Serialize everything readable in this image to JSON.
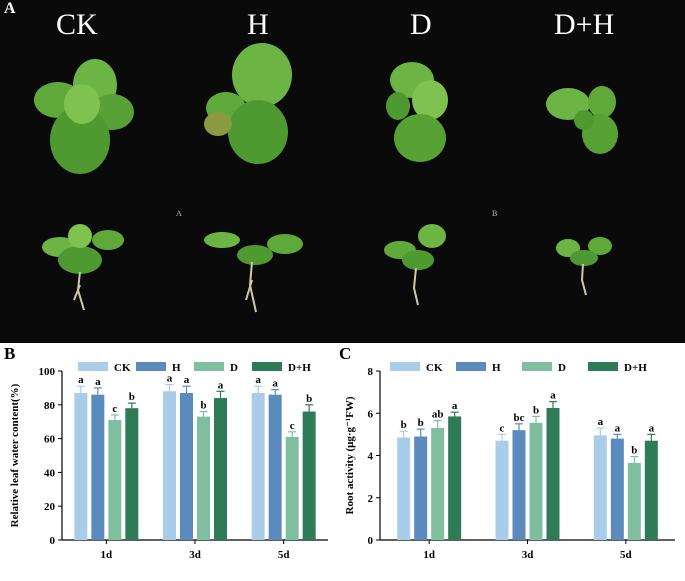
{
  "panel_a": {
    "letter": "A",
    "treatments": [
      "CK",
      "H",
      "D",
      "D+H"
    ],
    "photo_marks": [
      "A",
      "B"
    ]
  },
  "colors": {
    "CK": "#a9cde8",
    "H": "#5b8bbd",
    "D": "#7fbf9f",
    "D+H": "#2f7a57",
    "photo_background": "#0a0a0a",
    "leaf": "#5fa83a"
  },
  "chart_data": [
    {
      "panel": "B",
      "type": "bar",
      "ylabel": "Relative leaf water content(%)",
      "categories": [
        "1d",
        "3d",
        "5d"
      ],
      "series": [
        {
          "name": "CK",
          "values": [
            87,
            88,
            87
          ],
          "errors": [
            4,
            4,
            4
          ],
          "letters": [
            "a",
            "a",
            "a"
          ]
        },
        {
          "name": "H",
          "values": [
            86,
            87,
            86
          ],
          "errors": [
            4,
            4,
            3
          ],
          "letters": [
            "a",
            "a",
            "a"
          ]
        },
        {
          "name": "D",
          "values": [
            71,
            73,
            61
          ],
          "errors": [
            3,
            3,
            3
          ],
          "letters": [
            "c",
            "b",
            "c"
          ]
        },
        {
          "name": "D+H",
          "values": [
            78,
            84,
            76
          ],
          "errors": [
            3,
            4,
            4
          ],
          "letters": [
            "b",
            "a",
            "b"
          ]
        }
      ],
      "ylim": [
        0,
        100
      ],
      "yticks": [
        0,
        20,
        40,
        60,
        80,
        100
      ],
      "grid": false,
      "legend": "top"
    },
    {
      "panel": "C",
      "type": "bar",
      "ylabel": "Root activity (μg·g⁻¹FW)",
      "categories": [
        "1d",
        "3d",
        "5d"
      ],
      "series": [
        {
          "name": "CK",
          "values": [
            4.85,
            4.7,
            4.95
          ],
          "errors": [
            0.3,
            0.3,
            0.35
          ],
          "letters": [
            "b",
            "c",
            "a"
          ]
        },
        {
          "name": "H",
          "values": [
            4.9,
            5.2,
            4.8
          ],
          "errors": [
            0.35,
            0.3,
            0.2
          ],
          "letters": [
            "b",
            "bc",
            "a"
          ]
        },
        {
          "name": "D",
          "values": [
            5.3,
            5.55,
            3.65
          ],
          "errors": [
            0.35,
            0.3,
            0.3
          ],
          "letters": [
            "ab",
            "b",
            "b"
          ]
        },
        {
          "name": "D+H",
          "values": [
            5.85,
            6.25,
            4.7
          ],
          "errors": [
            0.2,
            0.3,
            0.3
          ],
          "letters": [
            "a",
            "a",
            "a"
          ]
        }
      ],
      "ylim": [
        0,
        8
      ],
      "yticks": [
        0,
        2,
        4,
        6,
        8
      ],
      "grid": false,
      "legend": "top"
    }
  ]
}
